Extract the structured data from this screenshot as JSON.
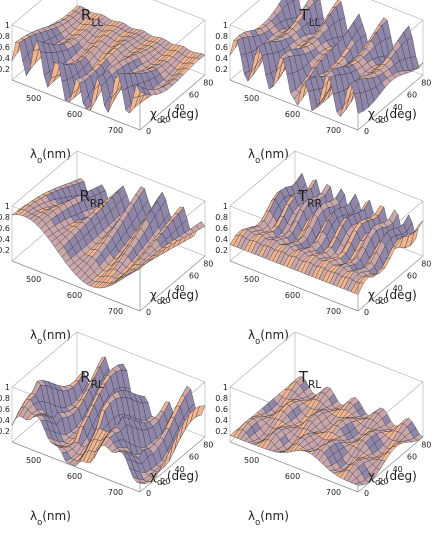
{
  "panels": [
    {
      "title": {
        "main": "R",
        "sub": "LL"
      }
    },
    {
      "title": {
        "main": "T",
        "sub": "LL"
      }
    },
    {
      "title": {
        "main": "R",
        "sub": "RR"
      }
    },
    {
      "title": {
        "main": "T",
        "sub": "RR"
      }
    },
    {
      "title": {
        "main": "R",
        "sub": "RL"
      }
    },
    {
      "title": {
        "main": "T",
        "sub": "RL"
      }
    }
  ],
  "z_ticks": [
    "1",
    "0.8",
    "0.6",
    "0.4",
    "0.2"
  ],
  "lambda_ticks": [
    "500",
    "600",
    "700"
  ],
  "chi_ticks": [
    "0",
    "20",
    "40",
    "60",
    "80"
  ],
  "lambda_label": {
    "main": "λ",
    "sub": "o",
    "unit": "(nm)"
  },
  "chi_label": {
    "main": "χ",
    "sub": "dc",
    "unit": "(deg)"
  }
}
